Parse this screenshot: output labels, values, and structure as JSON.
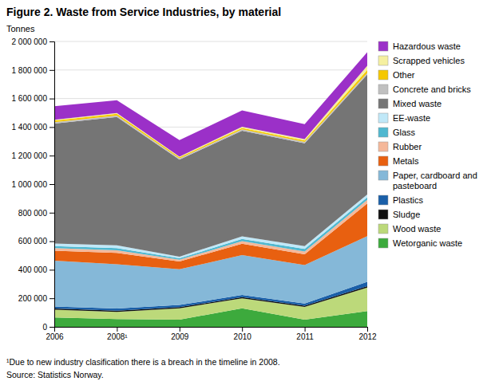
{
  "chart_data": {
    "type": "area",
    "stacked": true,
    "title": "Figure 2. Waste from Service Industries, by material",
    "ylabel": "Tonnes",
    "footnote": "¹Due to new industry clasification there is a breach in the timeline in 2008.",
    "source": "Source: Statistics Norway.",
    "categories": [
      "2006",
      "2008¹",
      "2009",
      "2010",
      "2011",
      "2012"
    ],
    "series": [
      {
        "name": "Wetorganic waste",
        "color": "#3daa3d",
        "values": [
          65000,
          55000,
          50000,
          130000,
          50000,
          110000
        ]
      },
      {
        "name": "Wood waste",
        "color": "#bcd97a",
        "values": [
          55000,
          50000,
          80000,
          70000,
          90000,
          165000
        ]
      },
      {
        "name": "Sludge",
        "color": "#111111",
        "values": [
          8000,
          8000,
          8000,
          8000,
          8000,
          10000
        ]
      },
      {
        "name": "Plastics",
        "color": "#1a5fa8",
        "values": [
          15000,
          15000,
          15000,
          15000,
          15000,
          30000
        ]
      },
      {
        "name": "Paper, cardboard and pasteboard",
        "color": "#85b8d8",
        "values": [
          320000,
          310000,
          250000,
          280000,
          270000,
          320000
        ]
      },
      {
        "name": "Metals",
        "color": "#e86010",
        "values": [
          70000,
          80000,
          55000,
          80000,
          75000,
          230000
        ]
      },
      {
        "name": "Rubber",
        "color": "#f5b89a",
        "values": [
          18000,
          18000,
          12000,
          18000,
          20000,
          25000
        ]
      },
      {
        "name": "Glass",
        "color": "#50b8d0",
        "values": [
          15000,
          15000,
          10000,
          15000,
          18000,
          18000
        ]
      },
      {
        "name": "EE-waste",
        "color": "#c0e8f8",
        "values": [
          18000,
          20000,
          12000,
          18000,
          20000,
          20000
        ]
      },
      {
        "name": "Mixed waste",
        "color": "#757575",
        "values": [
          840000,
          900000,
          680000,
          740000,
          720000,
          840000
        ]
      },
      {
        "name": "Concrete and bricks",
        "color": "#c0c0c0",
        "values": [
          10000,
          10000,
          8000,
          10000,
          10000,
          12000
        ]
      },
      {
        "name": "Other",
        "color": "#f5c800",
        "values": [
          12000,
          12000,
          8000,
          10000,
          10000,
          20000
        ]
      },
      {
        "name": "Scrapped vehicles",
        "color": "#f5f0a0",
        "values": [
          5000,
          5000,
          5000,
          8000,
          10000,
          30000
        ]
      },
      {
        "name": "Hazardous waste",
        "color": "#9b30c8",
        "values": [
          95000,
          90000,
          115000,
          115000,
          105000,
          95000
        ]
      }
    ],
    "ylim": [
      0,
      2000000
    ],
    "yticks": [
      0,
      {
        "value": 200000,
        "label": "200 000"
      },
      {
        "value": 400000,
        "label": "400 000"
      },
      {
        "value": 600000,
        "label": "600 000"
      },
      {
        "value": 800000,
        "label": "800 000"
      },
      {
        "value": 1000000,
        "label": "1 000 000"
      },
      {
        "value": 1200000,
        "label": "1 200 000"
      },
      {
        "value": 1400000,
        "label": "1 400 000"
      },
      {
        "value": 1600000,
        "label": "1 600 000"
      },
      {
        "value": 1800000,
        "label": "1 800 000"
      },
      {
        "value": 2000000,
        "label": "2 000 000"
      }
    ],
    "grid": true,
    "legend": "right"
  }
}
